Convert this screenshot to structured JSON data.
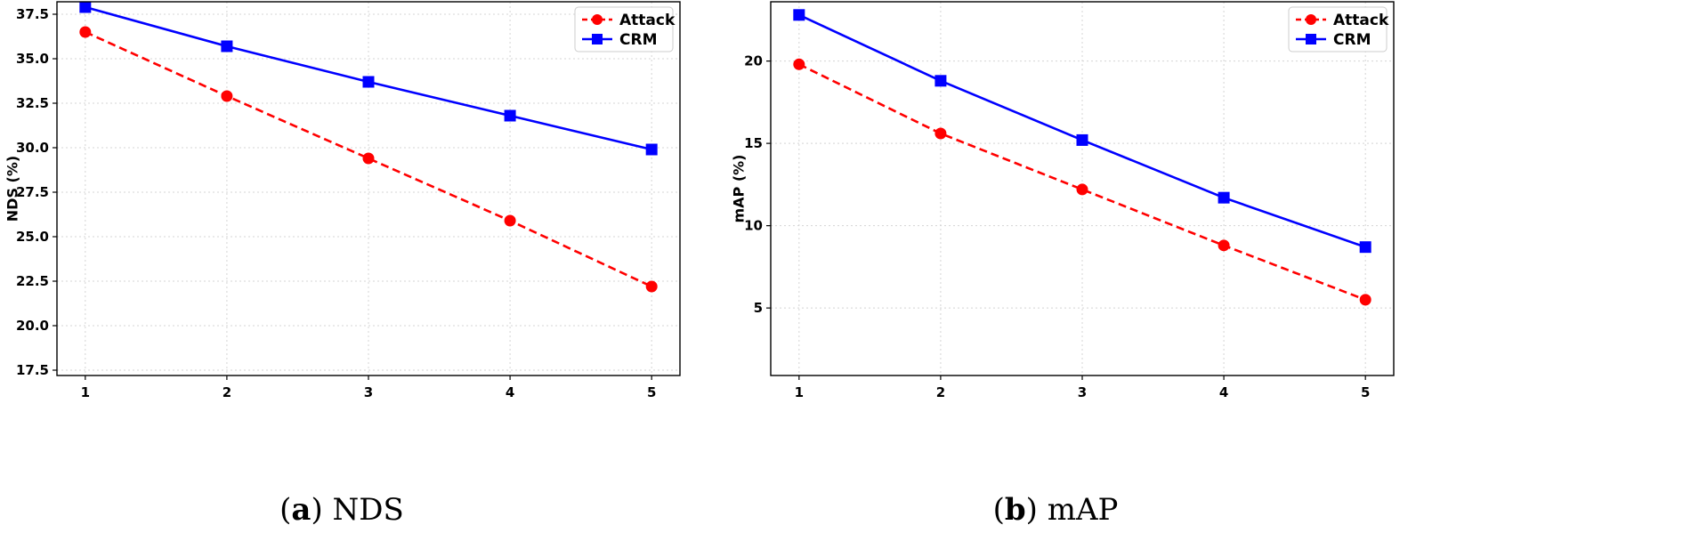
{
  "chart_data": [
    {
      "type": "line",
      "caption_letter": "a",
      "caption_text": "NDS",
      "title": "",
      "xlabel": "",
      "ylabel": "NDS (%)",
      "x": [
        1,
        2,
        3,
        4,
        5
      ],
      "xlim": [
        0.8,
        5.2
      ],
      "ylim": [
        17.2,
        38.2
      ],
      "yticks": [
        17.5,
        20.0,
        22.5,
        25.0,
        27.5,
        30.0,
        32.5,
        35.0,
        37.5
      ],
      "ytick_labels": [
        "17.5",
        "20.0",
        "22.5",
        "25.0",
        "27.5",
        "30.0",
        "32.5",
        "35.0",
        "37.5"
      ],
      "xtick_labels": [
        "1",
        "2",
        "3",
        "4",
        "5"
      ],
      "grid": true,
      "legend_position": "top-right",
      "series": [
        {
          "name": "Attack",
          "values": [
            36.5,
            32.9,
            29.4,
            25.9,
            22.2
          ],
          "color": "#ff0000",
          "style": "dashed",
          "marker": "circle"
        },
        {
          "name": "CRM",
          "values": [
            37.9,
            35.7,
            33.7,
            31.8,
            29.9
          ],
          "color": "#0000ff",
          "style": "solid",
          "marker": "square"
        }
      ]
    },
    {
      "type": "line",
      "caption_letter": "b",
      "caption_text": "mAP",
      "title": "",
      "xlabel": "",
      "ylabel": "mAP (%)",
      "x": [
        1,
        2,
        3,
        4,
        5
      ],
      "xlim": [
        0.8,
        5.2
      ],
      "ylim": [
        0.9,
        23.6
      ],
      "yticks": [
        5,
        10,
        15,
        20
      ],
      "ytick_labels": [
        "5",
        "10",
        "15",
        "20"
      ],
      "xtick_labels": [
        "1",
        "2",
        "3",
        "4",
        "5"
      ],
      "grid": true,
      "legend_position": "top-right",
      "series": [
        {
          "name": "Attack",
          "values": [
            19.8,
            15.6,
            12.2,
            8.8,
            5.5
          ],
          "color": "#ff0000",
          "style": "dashed",
          "marker": "circle"
        },
        {
          "name": "CRM",
          "values": [
            22.8,
            18.8,
            15.2,
            11.7,
            8.7
          ],
          "color": "#0000ff",
          "style": "solid",
          "marker": "square"
        }
      ]
    }
  ]
}
